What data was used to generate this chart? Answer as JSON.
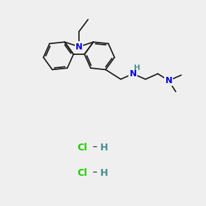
{
  "bg_color": "#efefef",
  "bond_color": "#1a1a1a",
  "N_color": "#0000dd",
  "H_color": "#4a9090",
  "Cl_color": "#22cc00",
  "lw": 1.3,
  "fs": 8,
  "fig_w": 3.0,
  "fig_h": 3.0,
  "dpi": 100,
  "N_label": "N",
  "H_label": "H",
  "Cl_label": "Cl",
  "dash_label": "–"
}
